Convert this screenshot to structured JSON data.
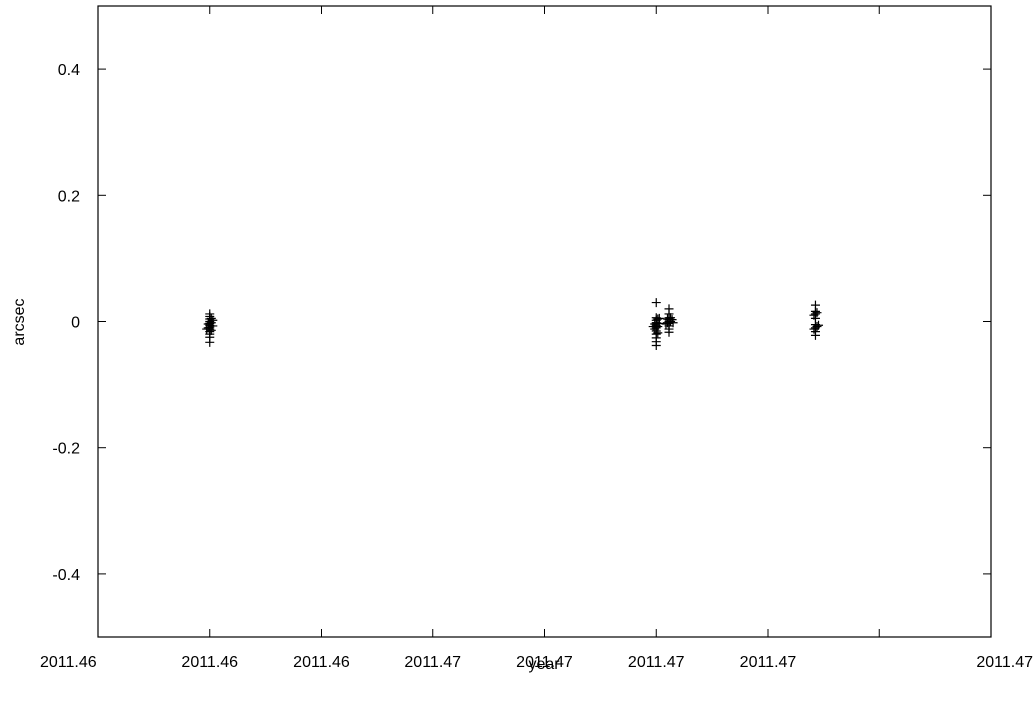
{
  "chart_data": {
    "type": "scatter",
    "xlabel": "year",
    "ylabel": "arcsec",
    "xlim": [
      2011.455,
      2011.4725
    ],
    "ylim": [
      -0.5,
      0.5
    ],
    "grid": false,
    "marker": "plus",
    "x_ticks": [
      {
        "value": 2011.455,
        "label": "2011.46"
      },
      {
        "value": 2011.45719,
        "label": "2011.46"
      },
      {
        "value": 2011.45938,
        "label": "2011.46"
      },
      {
        "value": 2011.46156,
        "label": "2011.47"
      },
      {
        "value": 2011.46375,
        "label": "2011.47"
      },
      {
        "value": 2011.46594,
        "label": "2011.47"
      },
      {
        "value": 2011.46813,
        "label": "2011.47"
      },
      {
        "value": 2011.47031,
        "label": "2011.47"
      }
    ],
    "y_ticks": [
      {
        "value": 0.4,
        "label": "0.4"
      },
      {
        "value": 0.2,
        "label": "0.2"
      },
      {
        "value": 0,
        "label": "0"
      },
      {
        "value": -0.2,
        "label": "-0.2"
      },
      {
        "value": -0.4,
        "label": "-0.4"
      }
    ],
    "series": [
      {
        "points": [
          [
            2011.45719,
            0.012
          ],
          [
            2011.45719,
            0.008
          ],
          [
            2011.45719,
            0.004
          ],
          [
            2011.45719,
            0.0
          ],
          [
            2011.45719,
            -0.003
          ],
          [
            2011.45719,
            -0.006
          ],
          [
            2011.45719,
            -0.009
          ],
          [
            2011.45719,
            -0.012
          ],
          [
            2011.45719,
            -0.016
          ],
          [
            2011.45719,
            -0.02
          ],
          [
            2011.45719,
            -0.025
          ],
          [
            2011.45719,
            -0.033
          ],
          [
            2011.45722,
            0.005
          ],
          [
            2011.45722,
            -0.002
          ],
          [
            2011.45722,
            -0.014
          ],
          [
            2011.45716,
            -0.004
          ],
          [
            2011.45716,
            -0.01
          ],
          [
            2011.45725,
            -0.007
          ],
          [
            2011.45725,
            0.002
          ],
          [
            2011.45713,
            -0.012
          ],
          [
            2011.46594,
            0.03
          ],
          [
            2011.46594,
            0.006
          ],
          [
            2011.46594,
            0.002
          ],
          [
            2011.46594,
            -0.002
          ],
          [
            2011.46594,
            -0.006
          ],
          [
            2011.46594,
            -0.01
          ],
          [
            2011.46594,
            -0.015
          ],
          [
            2011.46594,
            -0.02
          ],
          [
            2011.46594,
            -0.026
          ],
          [
            2011.46594,
            -0.032
          ],
          [
            2011.46594,
            -0.038
          ],
          [
            2011.46597,
            0.004
          ],
          [
            2011.46597,
            -0.008
          ],
          [
            2011.46597,
            -0.018
          ],
          [
            2011.46591,
            -0.004
          ],
          [
            2011.46591,
            -0.012
          ],
          [
            2011.466,
            0.005
          ],
          [
            2011.466,
            -0.003
          ],
          [
            2011.46588,
            -0.008
          ],
          [
            2011.46619,
            0.02
          ],
          [
            2011.46619,
            0.012
          ],
          [
            2011.46619,
            0.006
          ],
          [
            2011.46619,
            0.003
          ],
          [
            2011.46619,
            0.0
          ],
          [
            2011.46619,
            -0.003
          ],
          [
            2011.46619,
            -0.007
          ],
          [
            2011.46619,
            -0.012
          ],
          [
            2011.46619,
            -0.017
          ],
          [
            2011.46616,
            0.004
          ],
          [
            2011.46616,
            -0.002
          ],
          [
            2011.46622,
            0.006
          ],
          [
            2011.46622,
            0.0
          ],
          [
            2011.46625,
            0.003
          ],
          [
            2011.46613,
            -0.004
          ],
          [
            2011.46627,
            -0.002
          ],
          [
            2011.46906,
            0.026
          ],
          [
            2011.46906,
            0.016
          ],
          [
            2011.46906,
            0.012
          ],
          [
            2011.46906,
            0.005
          ],
          [
            2011.46906,
            -0.005
          ],
          [
            2011.46906,
            -0.01
          ],
          [
            2011.46906,
            -0.016
          ],
          [
            2011.46906,
            -0.022
          ],
          [
            2011.46909,
            0.014
          ],
          [
            2011.46909,
            -0.008
          ],
          [
            2011.46903,
            -0.012
          ],
          [
            2011.46903,
            0.01
          ],
          [
            2011.46912,
            -0.006
          ]
        ]
      }
    ]
  }
}
